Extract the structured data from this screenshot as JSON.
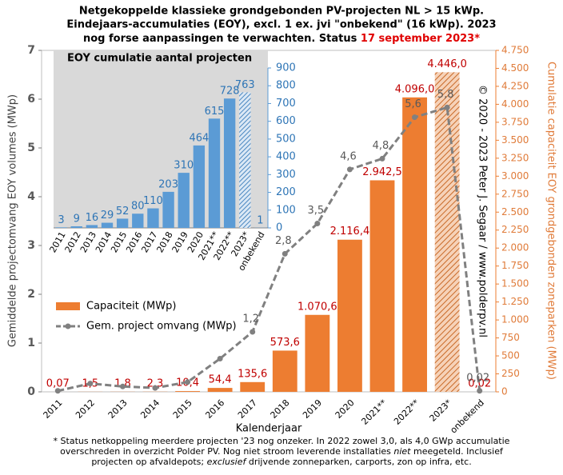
{
  "chart_data": [
    {
      "type": "bar",
      "title": [
        "Netgekoppelde klassieke grondgebonden PV-projecten NL > 15 kWp.",
        "Eindejaars-accumulaties (EOY), excl. 1 ex. jvi \"onbekend\" (16 kWp). 2023",
        "nog forse aanpassingen te verwachten. Status "
      ],
      "title_highlight": "17 september 2023*",
      "xlabel": "Kalenderjaar",
      "ylabel": "Gemiddelde projectomvang EOY volumes (MWp)",
      "y2label": "Cumulatie capaciteit EOY grondgebonden zoneparken (MWp)",
      "copyright": "© 2020 - 2023 Peter J. Segaar / www.polderpv.nl",
      "categories": [
        "2011",
        "2012",
        "2013",
        "2014",
        "2015",
        "2016",
        "2017",
        "2018",
        "2019",
        "2020",
        "2021**",
        "2022**",
        "2023*",
        "onbekend"
      ],
      "series": [
        {
          "name": "Capaciteit (MWp)",
          "type": "bar",
          "axis": "y2",
          "color": "#ed7d31",
          "values": [
            0.07,
            1.5,
            1.8,
            2.3,
            10.4,
            54.4,
            135.6,
            573.6,
            1070.6,
            2116.4,
            2942.5,
            4096.0,
            4446.0,
            0.02
          ],
          "value_labels": [
            "0,07",
            "1,5",
            "1,8",
            "2,3",
            "10,4",
            "54,4",
            "135,6",
            "573,6",
            "1.070,6",
            "2.116,4",
            "2.942,5",
            "4.096,0",
            "4.446,0",
            "0,02"
          ]
        },
        {
          "name": "Gem. project omvang (MWp)",
          "type": "line",
          "axis": "y",
          "color": "#808080",
          "values": [
            0.02,
            0.17,
            0.11,
            0.08,
            0.2,
            0.68,
            1.23,
            2.83,
            3.45,
            4.56,
            4.78,
            5.63,
            5.83,
            0.02
          ],
          "value_labels": [
            null,
            null,
            null,
            null,
            null,
            null,
            "1,2",
            "2,8",
            "3,5",
            "4,6",
            "4,8",
            "5,6",
            "5,8",
            "0,02"
          ]
        }
      ],
      "ylim": [
        0,
        7
      ],
      "yticks": [
        0,
        1,
        2,
        3,
        4,
        5,
        6,
        7
      ],
      "y2lim": [
        0,
        4750
      ],
      "y2ticks": [
        0,
        250,
        500,
        750,
        {
          "value": 1000,
          "label": "1.000"
        },
        {
          "value": 1250,
          "label": "1.250"
        },
        {
          "value": 1500,
          "label": "1.500"
        },
        {
          "value": 1750,
          "label": "1.750"
        },
        {
          "value": 2000,
          "label": "2.000"
        },
        {
          "value": 2250,
          "label": "2.250"
        },
        {
          "value": 2500,
          "label": "2.500"
        },
        {
          "value": 2750,
          "label": "2.750"
        },
        {
          "value": 3000,
          "label": "3.000"
        },
        {
          "value": 3250,
          "label": "3.250"
        },
        {
          "value": 3500,
          "label": "3.500"
        },
        {
          "value": 3750,
          "label": "3.750"
        },
        {
          "value": 4000,
          "label": "4.000"
        },
        {
          "value": 4250,
          "label": "4.250"
        },
        {
          "value": 4500,
          "label": "4.500"
        },
        {
          "value": 4750,
          "label": "4.750"
        }
      ],
      "legend": "left",
      "footnote": [
        [
          "* Status netkoppeling meerdere projecten '23 nog onzeker. In 2022 zowel 3,0, als 4,0 GWp accumulatie"
        ],
        [
          "overschreden in overzicht Polder PV. Nog niet stroom leverende installaties ",
          "niet",
          " meegeteld. Inclusief"
        ],
        [
          "projecten op afvaldepots; ",
          "exclusief",
          " drijvende zonneparken, carports, zon op infra, etc."
        ]
      ]
    },
    {
      "type": "bar",
      "title": "EOY cumulatie aantal projecten",
      "categories": [
        "2011",
        "2012",
        "2013",
        "2014",
        "2015",
        "2016",
        "2017",
        "2018",
        "2019",
        "2020",
        "2021**",
        "2022**",
        "2023*",
        "onbekend"
      ],
      "values": [
        3,
        9,
        16,
        29,
        52,
        80,
        110,
        203,
        310,
        464,
        615,
        728,
        763,
        1
      ],
      "color": "#5b9bd5",
      "ylim": [
        0,
        900
      ],
      "yticks": [
        0,
        100,
        200,
        300,
        400,
        500,
        600,
        700,
        800,
        900
      ]
    }
  ]
}
